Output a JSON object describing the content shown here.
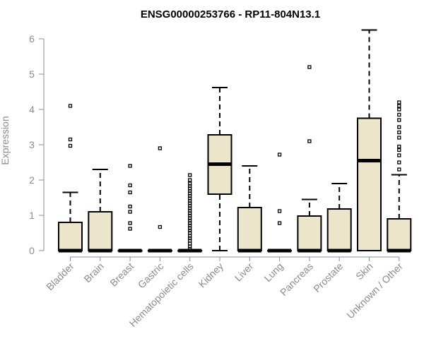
{
  "chart_data": {
    "type": "boxplot",
    "title": "ENSG00000253766 - RP11-804N13.1",
    "xlabel": "",
    "ylabel": "Expression",
    "ylim": [
      0,
      6.2
    ],
    "y_ticks": [
      "0",
      "1",
      "2",
      "3",
      "4",
      "5",
      "6"
    ],
    "grid": false,
    "box_fill": "#ede5cb",
    "categories": [
      "Bladder",
      "Brain",
      "Breast",
      "Gastric",
      "Hematopoietic cells",
      "Kidney",
      "Liver",
      "Lung",
      "Pancreas",
      "Prostate",
      "Skin",
      "Unknown / Other"
    ],
    "boxes": [
      {
        "min": 0,
        "q1": 0,
        "median": 0,
        "q3": 0.8,
        "max": 1.65,
        "outliers": [
          2.97,
          3.15,
          4.1
        ]
      },
      {
        "min": 0,
        "q1": 0,
        "median": 0,
        "q3": 1.1,
        "max": 2.3,
        "outliers": []
      },
      {
        "min": 0,
        "q1": 0,
        "median": 0,
        "q3": 0,
        "max": 0,
        "outliers": [
          0.62,
          0.78,
          1.1,
          1.25,
          1.65,
          1.85,
          2.4
        ]
      },
      {
        "min": 0,
        "q1": 0,
        "median": 0,
        "q3": 0,
        "max": 0,
        "outliers": [
          0.67,
          2.9
        ]
      },
      {
        "min": 0,
        "q1": 0,
        "median": 0,
        "q3": 0,
        "max": 0,
        "outliers": [
          0.05,
          0.12,
          0.2,
          0.28,
          0.35,
          0.42,
          0.5,
          0.57,
          0.64,
          0.71,
          0.78,
          0.85,
          0.92,
          0.99,
          1.06,
          1.13,
          1.2,
          1.27,
          1.34,
          1.41,
          1.48,
          1.55,
          1.62,
          1.69,
          1.76,
          1.83,
          1.9,
          2.0,
          2.14
        ]
      },
      {
        "min": 0,
        "q1": 1.6,
        "median": 2.45,
        "q3": 3.28,
        "max": 4.62,
        "outliers": []
      },
      {
        "min": 0,
        "q1": 0,
        "median": 0,
        "q3": 1.22,
        "max": 2.4,
        "outliers": []
      },
      {
        "min": 0,
        "q1": 0,
        "median": 0,
        "q3": 0,
        "max": 0,
        "outliers": [
          0.78,
          1.12,
          2.72
        ]
      },
      {
        "min": 0,
        "q1": 0,
        "median": 0,
        "q3": 0.98,
        "max": 1.45,
        "outliers": [
          3.1,
          5.2
        ]
      },
      {
        "min": 0,
        "q1": 0,
        "median": 0,
        "q3": 1.18,
        "max": 1.9,
        "outliers": []
      },
      {
        "min": 0,
        "q1": 0,
        "median": 2.55,
        "q3": 3.75,
        "max": 6.25,
        "outliers": []
      },
      {
        "min": 0,
        "q1": 0,
        "median": 0,
        "q3": 0.9,
        "max": 2.15,
        "outliers": [
          2.3,
          2.5,
          2.7,
          2.85,
          2.95,
          3.2,
          3.35,
          3.5,
          3.7,
          3.85,
          4.0,
          4.1,
          4.2
        ]
      }
    ]
  }
}
